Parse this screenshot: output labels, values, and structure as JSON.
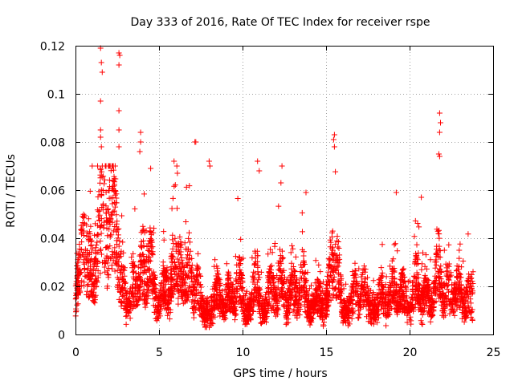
{
  "chart_data": {
    "type": "scatter",
    "title": "Day 333 of 2016, Rate Of TEC Index for receiver rspe",
    "xlabel": "GPS time / hours",
    "ylabel": "ROTI / TECUs",
    "xlim": [
      0,
      25
    ],
    "ylim": [
      0,
      0.12
    ],
    "xticks": [
      0,
      5,
      10,
      15,
      20,
      25
    ],
    "yticks": [
      0,
      0.02,
      0.04,
      0.06,
      0.08,
      0.1,
      0.12
    ],
    "ytick_labels": [
      "0",
      "0.02",
      "0.04",
      "0.06",
      "0.08",
      "0.1",
      "0.12"
    ],
    "xtick_labels": [
      "0",
      "5",
      "10",
      "15",
      "20",
      "25"
    ],
    "grid": true,
    "marker": "plus",
    "color": "#ff0000",
    "x_range_observed": [
      0,
      23.8
    ],
    "notable_points": [
      {
        "x": 1.5,
        "y": 0.119
      },
      {
        "x": 1.55,
        "y": 0.113
      },
      {
        "x": 1.6,
        "y": 0.109
      },
      {
        "x": 1.5,
        "y": 0.097
      },
      {
        "x": 2.6,
        "y": 0.117
      },
      {
        "x": 2.65,
        "y": 0.116
      },
      {
        "x": 2.6,
        "y": 0.112
      },
      {
        "x": 2.6,
        "y": 0.093
      },
      {
        "x": 2.6,
        "y": 0.085
      },
      {
        "x": 1.5,
        "y": 0.085
      },
      {
        "x": 1.5,
        "y": 0.082
      },
      {
        "x": 1.55,
        "y": 0.078
      },
      {
        "x": 2.6,
        "y": 0.078
      },
      {
        "x": 3.9,
        "y": 0.084
      },
      {
        "x": 3.9,
        "y": 0.08
      },
      {
        "x": 3.85,
        "y": 0.076
      },
      {
        "x": 7.2,
        "y": 0.08
      },
      {
        "x": 7.15,
        "y": 0.08
      },
      {
        "x": 15.5,
        "y": 0.083
      },
      {
        "x": 15.45,
        "y": 0.081
      },
      {
        "x": 15.5,
        "y": 0.078
      },
      {
        "x": 21.8,
        "y": 0.092
      },
      {
        "x": 21.85,
        "y": 0.088
      },
      {
        "x": 21.8,
        "y": 0.084
      },
      {
        "x": 21.75,
        "y": 0.075
      },
      {
        "x": 21.8,
        "y": 0.074
      },
      {
        "x": 1.0,
        "y": 0.07
      },
      {
        "x": 1.5,
        "y": 0.069
      },
      {
        "x": 5.9,
        "y": 0.072
      },
      {
        "x": 6.1,
        "y": 0.067
      },
      {
        "x": 8.0,
        "y": 0.072
      },
      {
        "x": 8.05,
        "y": 0.07
      },
      {
        "x": 10.9,
        "y": 0.072
      },
      {
        "x": 11.0,
        "y": 0.068
      },
      {
        "x": 12.3,
        "y": 0.063
      },
      {
        "x": 19.2,
        "y": 0.059
      },
      {
        "x": 20.7,
        "y": 0.057
      },
      {
        "x": 4.5,
        "y": 0.069
      },
      {
        "x": 13.8,
        "y": 0.059
      }
    ]
  }
}
